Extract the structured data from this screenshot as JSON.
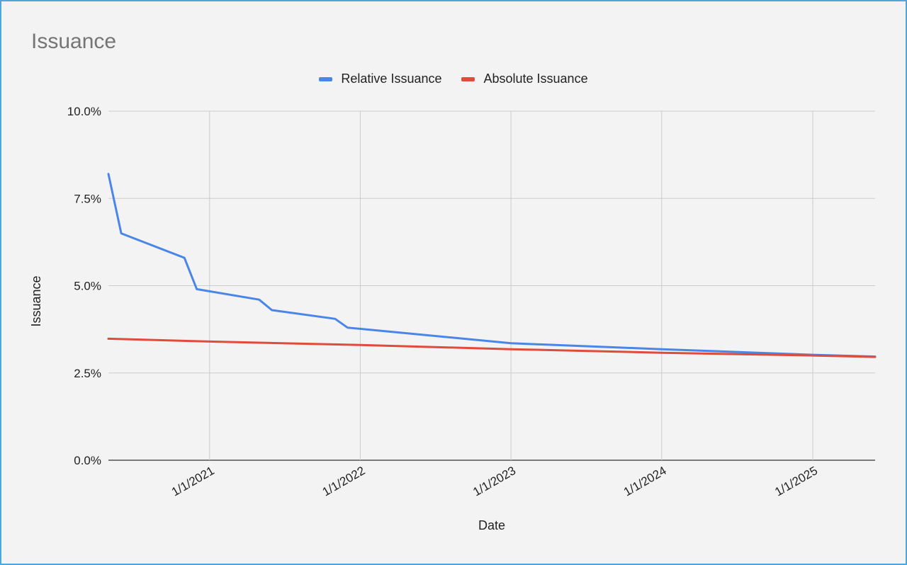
{
  "chart_data": {
    "type": "line",
    "title": "Issuance",
    "xlabel": "Date",
    "ylabel": "Issuance",
    "xlim": [
      "2020-05-01",
      "2025-06-01"
    ],
    "ylim": [
      0,
      10
    ],
    "y_ticks": [
      "0.0%",
      "2.5%",
      "5.0%",
      "7.5%",
      "10.0%"
    ],
    "x_ticks": [
      "1/1/2021",
      "1/1/2022",
      "1/1/2023",
      "1/1/2024",
      "1/1/2025"
    ],
    "grid": true,
    "legend_position": "top",
    "series": [
      {
        "name": "Relative Issuance",
        "color": "#4a86e8",
        "points": [
          [
            "2020-05-01",
            8.2
          ],
          [
            "2020-06-01",
            6.5
          ],
          [
            "2020-11-01",
            5.8
          ],
          [
            "2020-12-01",
            4.9
          ],
          [
            "2021-05-01",
            4.6
          ],
          [
            "2021-06-01",
            4.3
          ],
          [
            "2021-11-01",
            4.05
          ],
          [
            "2021-12-01",
            3.8
          ],
          [
            "2023-01-01",
            3.35
          ],
          [
            "2024-01-01",
            3.18
          ],
          [
            "2025-01-01",
            3.02
          ],
          [
            "2025-06-01",
            2.97
          ]
        ]
      },
      {
        "name": "Absolute Issuance",
        "color": "#e04b3b",
        "points": [
          [
            "2020-05-01",
            3.48
          ],
          [
            "2021-01-01",
            3.4
          ],
          [
            "2022-01-01",
            3.3
          ],
          [
            "2023-01-01",
            3.18
          ],
          [
            "2024-01-01",
            3.08
          ],
          [
            "2025-01-01",
            3.0
          ],
          [
            "2025-06-01",
            2.96
          ]
        ]
      }
    ]
  }
}
